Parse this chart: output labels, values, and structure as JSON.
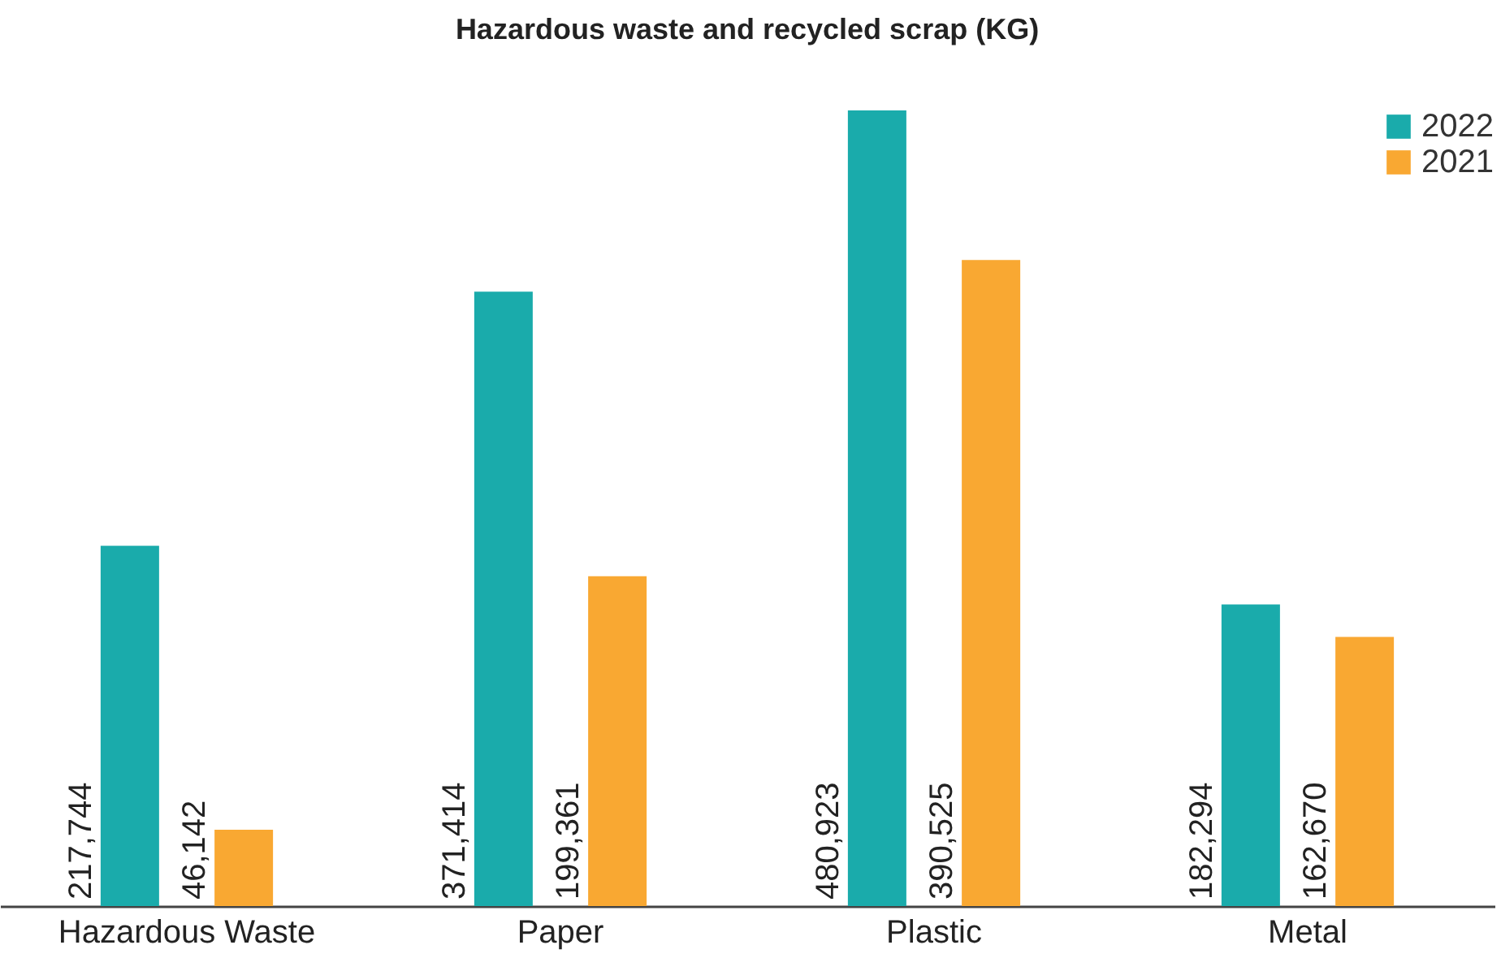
{
  "chart_data": {
    "type": "bar",
    "title": "Hazardous waste and recycled scrap (KG)",
    "categories": [
      "Hazardous Waste",
      "Paper",
      "Plastic",
      "Metal"
    ],
    "series": [
      {
        "name": "2022",
        "color": "#1aabab",
        "values": [
          217744,
          371414,
          480923,
          182294
        ],
        "value_labels": [
          "217,744",
          "371,414",
          "480,923",
          "182,294"
        ]
      },
      {
        "name": "2021",
        "color": "#f9a832",
        "values": [
          46142,
          199361,
          390525,
          162670
        ],
        "value_labels": [
          "46,142",
          "199,361",
          "390,525",
          "162,670"
        ]
      }
    ],
    "legend": "top right",
    "grid": false
  }
}
